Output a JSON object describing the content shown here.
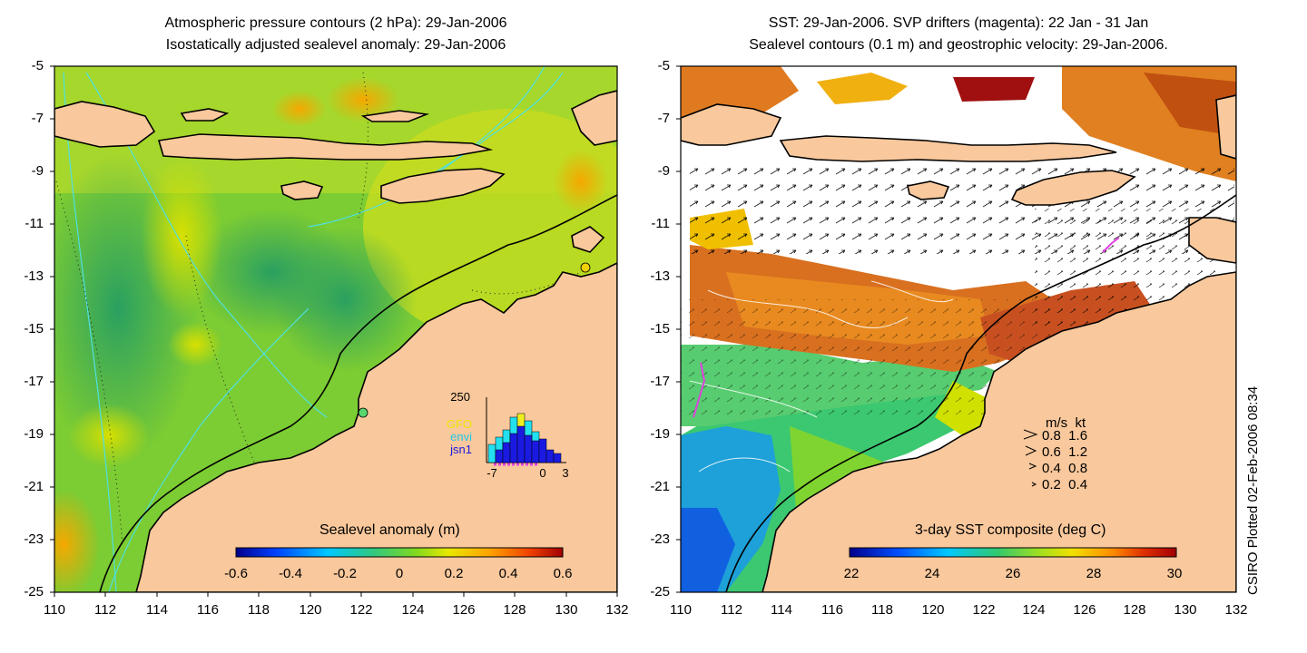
{
  "left_panel": {
    "title_line1": "Atmospheric pressure contours (2 hPa): 29-Jan-2006",
    "title_line2": "Isostatically adjusted sealevel anomaly: 29-Jan-2006",
    "colorbar_title": "Sealevel anomaly (m)",
    "colorbar_ticks": [
      "-0.6",
      "-0.4",
      "-0.2",
      "0",
      "0.2",
      "0.4",
      "0.6"
    ],
    "inset": {
      "ymax_label": "250",
      "series": [
        "GFO",
        "envi",
        "jsn1"
      ],
      "xticks": [
        "-7",
        "0",
        "3"
      ]
    }
  },
  "right_panel": {
    "title_line1": "SST: 29-Jan-2006. SVP drifters (magenta): 22 Jan - 31 Jan",
    "title_line2": "Sealevel contours (0.1 m) and geostrophic velocity: 29-Jan-2006.",
    "colorbar_title": "3-day SST composite (deg C)",
    "colorbar_ticks": [
      "22",
      "24",
      "26",
      "28",
      "30"
    ],
    "legend": {
      "header": "m/s  kt",
      "rows": [
        "0.8  1.6",
        "0.6  1.2",
        "0.4  0.8",
        "0.2  0.4"
      ]
    }
  },
  "axes": {
    "lat_ticks": [
      "-5",
      "-7",
      "-9",
      "-11",
      "-13",
      "-15",
      "-17",
      "-19",
      "-21",
      "-23",
      "-25"
    ],
    "lon_ticks": [
      "110",
      "112",
      "114",
      "116",
      "118",
      "120",
      "122",
      "124",
      "126",
      "128",
      "130",
      "132"
    ]
  },
  "credit": "CSIRO Plotted 02-Feb-2006 08:34",
  "colors": {
    "land": "#f9c89c",
    "magenta": "#e040e0",
    "contour": "#4fe0e0"
  }
}
